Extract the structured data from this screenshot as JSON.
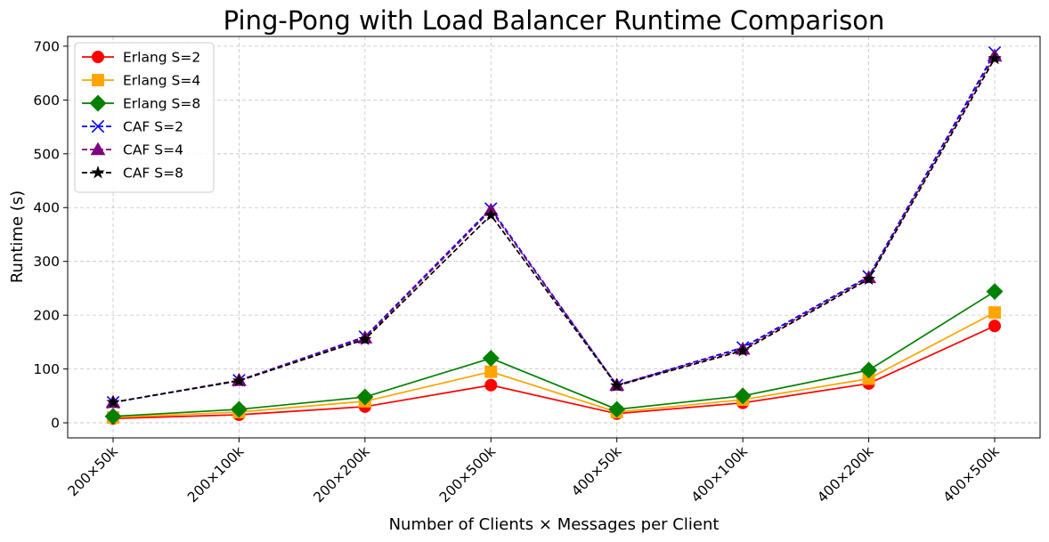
{
  "chart_data": {
    "type": "line",
    "title": "Ping-Pong with Load Balancer Runtime Comparison",
    "xlabel": "Number of Clients × Messages per Client",
    "ylabel": "Runtime (s)",
    "categories": [
      "200×50k",
      "200×100k",
      "200×200k",
      "200×500k",
      "400×50k",
      "400×100k",
      "400×200k",
      "400×500k"
    ],
    "ylim": [
      -28,
      718
    ],
    "yticks": [
      0,
      100,
      200,
      300,
      400,
      500,
      600,
      700
    ],
    "grid": true,
    "legend_position": "top-left",
    "series": [
      {
        "name": "Erlang S=2",
        "color": "#ff0000",
        "marker": "circle",
        "linestyle": "solid",
        "values": [
          8,
          15,
          30,
          70,
          17,
          37,
          73,
          180
        ]
      },
      {
        "name": "Erlang S=4",
        "color": "#ffa500",
        "marker": "square",
        "linestyle": "solid",
        "values": [
          10,
          20,
          40,
          95,
          20,
          43,
          82,
          205
        ]
      },
      {
        "name": "Erlang S=8",
        "color": "#008000",
        "marker": "diamond",
        "linestyle": "solid",
        "values": [
          12,
          25,
          48,
          120,
          25,
          50,
          98,
          244
        ]
      },
      {
        "name": "CAF S=2",
        "color": "#0000ff",
        "marker": "x",
        "linestyle": "dashed",
        "values": [
          38,
          79,
          160,
          398,
          70,
          140,
          272,
          688
        ]
      },
      {
        "name": "CAF S=4",
        "color": "#800080",
        "marker": "triangle",
        "linestyle": "dashed",
        "values": [
          38,
          79,
          158,
          395,
          70,
          137,
          270,
          682
        ]
      },
      {
        "name": "CAF S=8",
        "color": "#000000",
        "marker": "star",
        "linestyle": "dashed",
        "values": [
          38,
          78,
          155,
          386,
          69,
          134,
          267,
          677
        ]
      }
    ]
  }
}
